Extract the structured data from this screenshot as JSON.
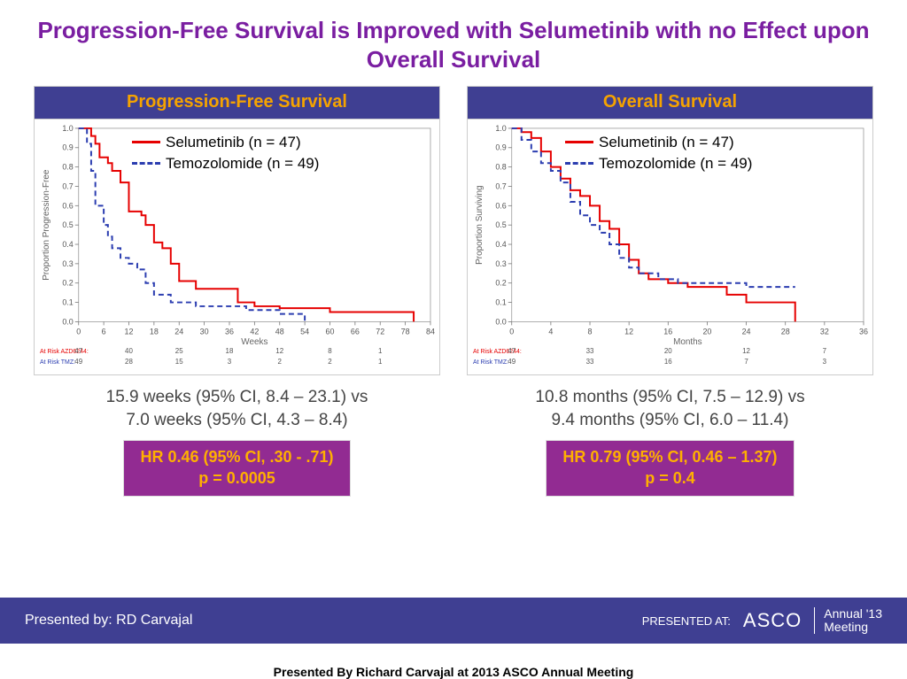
{
  "title": "Progression-Free Survival is Improved with Selumetinib with no Effect upon Overall Survival",
  "title_color": "#7a1ea1",
  "charts": {
    "pfs": {
      "header": "Progression-Free Survival",
      "header_bg": "#3f3f92",
      "header_fg": "#f5a300",
      "type": "kaplan-meier",
      "xlabel": "Weeks",
      "ylabel": "Proportion Progression-Free",
      "xlim": [
        0,
        84
      ],
      "xtick_step": 6,
      "ylim": [
        0,
        1.0
      ],
      "ytick_step": 0.1,
      "background": "#ffffff",
      "line_width": 2,
      "series": [
        {
          "name": "Selumetinib (n = 47)",
          "color": "#e60000",
          "dash": "solid",
          "points": [
            [
              0,
              1.0
            ],
            [
              3,
              0.96
            ],
            [
              4,
              0.92
            ],
            [
              5,
              0.85
            ],
            [
              7,
              0.82
            ],
            [
              8,
              0.78
            ],
            [
              10,
              0.72
            ],
            [
              12,
              0.57
            ],
            [
              15,
              0.55
            ],
            [
              16,
              0.5
            ],
            [
              18,
              0.41
            ],
            [
              20,
              0.38
            ],
            [
              22,
              0.3
            ],
            [
              24,
              0.21
            ],
            [
              28,
              0.17
            ],
            [
              36,
              0.17
            ],
            [
              38,
              0.1
            ],
            [
              42,
              0.08
            ],
            [
              48,
              0.07
            ],
            [
              60,
              0.05
            ],
            [
              78,
              0.05
            ],
            [
              80,
              0.0
            ]
          ]
        },
        {
          "name": "Temozolomide (n = 49)",
          "color": "#2b3db0",
          "dash": "dashed",
          "points": [
            [
              0,
              1.0
            ],
            [
              2,
              0.92
            ],
            [
              3,
              0.78
            ],
            [
              4,
              0.6
            ],
            [
              6,
              0.5
            ],
            [
              7,
              0.44
            ],
            [
              8,
              0.38
            ],
            [
              10,
              0.33
            ],
            [
              12,
              0.3
            ],
            [
              14,
              0.27
            ],
            [
              16,
              0.2
            ],
            [
              18,
              0.14
            ],
            [
              22,
              0.1
            ],
            [
              28,
              0.08
            ],
            [
              34,
              0.08
            ],
            [
              40,
              0.06
            ],
            [
              44,
              0.06
            ],
            [
              48,
              0.04
            ],
            [
              54,
              0.0
            ]
          ]
        }
      ],
      "at_risk": {
        "labels": [
          "At Risk AZD6244:",
          "At Risk TMZ:"
        ],
        "label_colors": [
          "#e60000",
          "#2b3db0"
        ],
        "ticks": [
          0,
          12,
          24,
          36,
          48,
          60,
          72
        ],
        "rows": [
          [
            47,
            40,
            25,
            18,
            12,
            8,
            1
          ],
          [
            49,
            28,
            15,
            3,
            2,
            2,
            1
          ]
        ]
      }
    },
    "os": {
      "header": "Overall Survival",
      "header_bg": "#3f3f92",
      "header_fg": "#f5a300",
      "type": "kaplan-meier",
      "xlabel": "Months",
      "ylabel": "Proportion Surviving",
      "xlim": [
        0,
        36
      ],
      "xtick_step": 4,
      "ylim": [
        0,
        1.0
      ],
      "ytick_step": 0.1,
      "background": "#ffffff",
      "line_width": 2,
      "series": [
        {
          "name": "Selumetinib (n = 47)",
          "color": "#e60000",
          "dash": "solid",
          "points": [
            [
              0,
              1.0
            ],
            [
              1,
              0.98
            ],
            [
              2,
              0.95
            ],
            [
              3,
              0.88
            ],
            [
              4,
              0.8
            ],
            [
              5,
              0.74
            ],
            [
              6,
              0.68
            ],
            [
              7,
              0.65
            ],
            [
              8,
              0.6
            ],
            [
              9,
              0.52
            ],
            [
              10,
              0.48
            ],
            [
              11,
              0.4
            ],
            [
              12,
              0.32
            ],
            [
              13,
              0.25
            ],
            [
              14,
              0.22
            ],
            [
              16,
              0.2
            ],
            [
              18,
              0.18
            ],
            [
              22,
              0.14
            ],
            [
              24,
              0.1
            ],
            [
              28,
              0.1
            ],
            [
              29,
              0.0
            ]
          ]
        },
        {
          "name": "Temozolomide (n = 49)",
          "color": "#2b3db0",
          "dash": "dashed",
          "points": [
            [
              0,
              1.0
            ],
            [
              1,
              0.94
            ],
            [
              2,
              0.88
            ],
            [
              3,
              0.82
            ],
            [
              4,
              0.78
            ],
            [
              5,
              0.72
            ],
            [
              6,
              0.62
            ],
            [
              7,
              0.55
            ],
            [
              8,
              0.5
            ],
            [
              9,
              0.46
            ],
            [
              10,
              0.4
            ],
            [
              11,
              0.33
            ],
            [
              12,
              0.28
            ],
            [
              13,
              0.25
            ],
            [
              15,
              0.22
            ],
            [
              17,
              0.2
            ],
            [
              20,
              0.2
            ],
            [
              24,
              0.18
            ],
            [
              28,
              0.18
            ],
            [
              29,
              0.18
            ]
          ]
        }
      ],
      "at_risk": {
        "labels": [
          "At Risk AZD6244:",
          "At Risk TMZ:"
        ],
        "label_colors": [
          "#e60000",
          "#2b3db0"
        ],
        "ticks": [
          0,
          8,
          16,
          24,
          32
        ],
        "rows": [
          [
            47,
            33,
            20,
            12,
            7
          ],
          [
            49,
            33,
            16,
            7,
            3
          ]
        ]
      }
    }
  },
  "captions": {
    "pfs_line1": "15.9 weeks (95% CI, 8.4 – 23.1) vs",
    "pfs_line2": "7.0 weeks (95% CI, 4.3 – 8.4)",
    "os_line1": "10.8 months (95% CI, 7.5 – 12.9) vs",
    "os_line2": "9.4 months (95% CI, 6.0 – 11.4)"
  },
  "hr_boxes": {
    "pfs_line1": "HR 0.46 (95% CI, .30 - .71)",
    "pfs_line2": "p = 0.0005",
    "os_line1": "HR 0.79 (95% CI, 0.46 – 1.37)",
    "os_line2": "p = 0.4",
    "bg": "#922b92",
    "fg": "#ffb000"
  },
  "footer": {
    "left": "Presented by: RD Carvajal",
    "presented_at": "PRESENTED AT:",
    "logo": "ASCO",
    "meeting_top": "Annual '13",
    "meeting_bot": "Meeting",
    "bg": "#3f3f92",
    "fg": "#ffffff"
  },
  "sub_caption": "Presented By Richard Carvajal at 2013 ASCO Annual Meeting"
}
